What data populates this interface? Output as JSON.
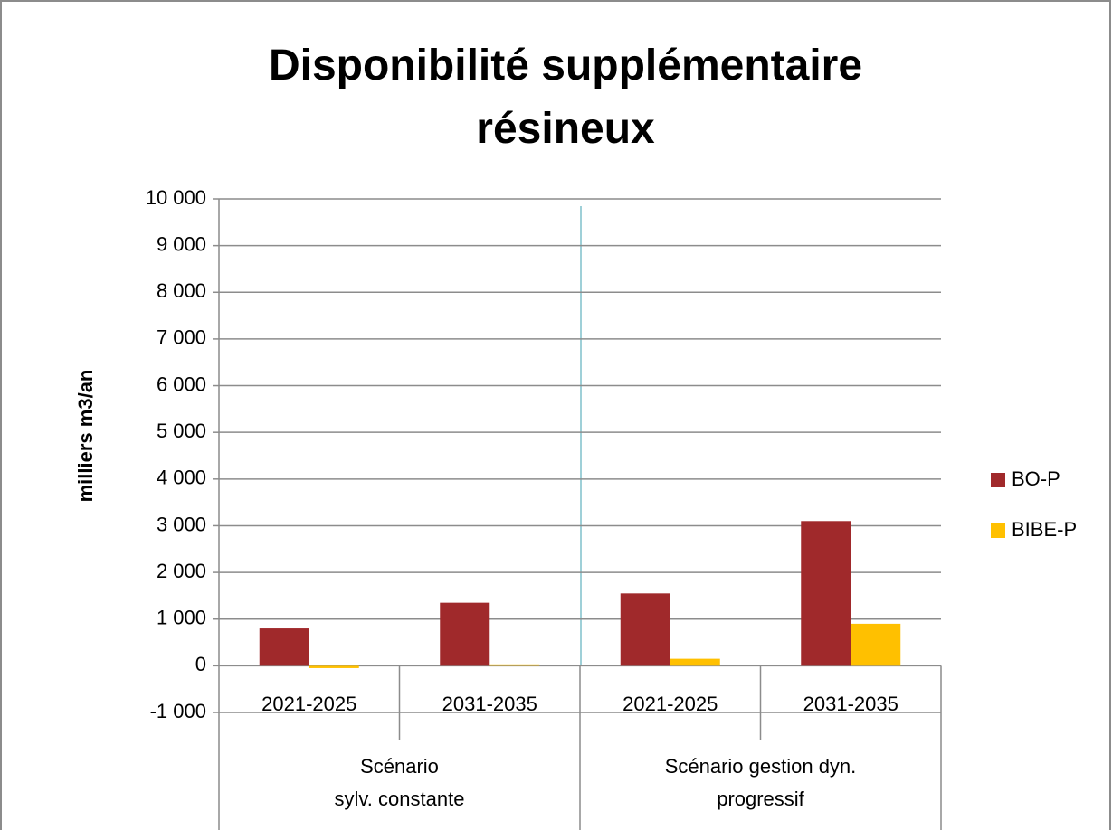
{
  "chart_data": {
    "type": "bar",
    "title": "Disponibilité supplémentaire\nrésineux",
    "y_label": "milliers m3/an",
    "categories": [
      "2021-2025",
      "2031-2035",
      "2021-2025",
      "2031-2035"
    ],
    "groups": [
      "Scénario\nsylv. constante",
      "Scénario gestion dyn.\nprogressif"
    ],
    "series": [
      {
        "name": "BO-P",
        "color": "#a0292b",
        "values": [
          800,
          1350,
          1550,
          3100
        ]
      },
      {
        "name": "BIBE-P",
        "color": "#ffc000",
        "values": [
          -50,
          30,
          150,
          900
        ]
      }
    ],
    "ylim": [
      -1000,
      10000
    ],
    "yticks": [
      {
        "value": -1000,
        "label": "-1 000"
      },
      0,
      {
        "value": 1000,
        "label": "1 000"
      },
      {
        "value": 2000,
        "label": "2 000"
      },
      {
        "value": 3000,
        "label": "3 000"
      },
      {
        "value": 4000,
        "label": "4 000"
      },
      {
        "value": 5000,
        "label": "5 000"
      },
      {
        "value": 6000,
        "label": "6 000"
      },
      {
        "value": 7000,
        "label": "7 000"
      },
      {
        "value": 8000,
        "label": "8 000"
      },
      {
        "value": 9000,
        "label": "9 000"
      },
      {
        "value": 10000,
        "label": "10 000"
      }
    ],
    "grid": true,
    "legend": "right"
  }
}
